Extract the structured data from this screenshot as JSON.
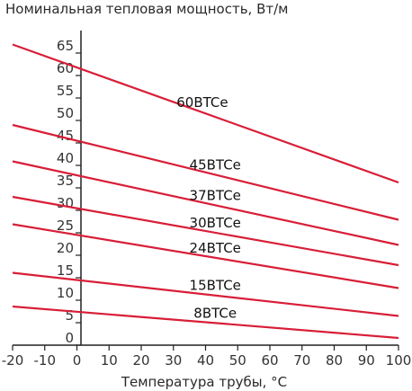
{
  "chart_data": {
    "type": "line",
    "title": "Номинальная тепловая мощность, Вт/м",
    "xlabel": "Температура трубы, °С",
    "ylabel": "",
    "xlim": [
      -20,
      100
    ],
    "ylim": [
      0,
      70
    ],
    "x_ticks": [
      "-20",
      "-10",
      "0",
      "10",
      "20",
      "30",
      "40",
      "50",
      "60",
      "70",
      "80",
      "90",
      "100"
    ],
    "y_ticks": [
      "0",
      "5",
      "10",
      "15",
      "20",
      "25",
      "30",
      "35",
      "40",
      "45",
      "50",
      "55",
      "60",
      "65"
    ],
    "grid": false,
    "line_color": "#d81e37",
    "series": [
      {
        "name": "60BTCe",
        "x": [
          -20,
          100
        ],
        "y": [
          66.9,
          36.2
        ],
        "label_at": 39
      },
      {
        "name": "45BTCe",
        "x": [
          -20,
          100
        ],
        "y": [
          49.0,
          27.9
        ],
        "label_at": 43
      },
      {
        "name": "37BTCe",
        "x": [
          -20,
          100
        ],
        "y": [
          40.9,
          22.3
        ],
        "label_at": 43
      },
      {
        "name": "30BTCe",
        "x": [
          -20,
          100
        ],
        "y": [
          33.0,
          17.8
        ],
        "label_at": 43
      },
      {
        "name": "24BTCe",
        "x": [
          -20,
          100
        ],
        "y": [
          26.9,
          12.7
        ],
        "label_at": 43
      },
      {
        "name": "15BTCe",
        "x": [
          -20,
          100
        ],
        "y": [
          16.1,
          6.5
        ],
        "label_at": 43
      },
      {
        "name": "8BTCe",
        "x": [
          -20,
          100
        ],
        "y": [
          8.6,
          1.6
        ],
        "label_at": 43
      }
    ]
  }
}
